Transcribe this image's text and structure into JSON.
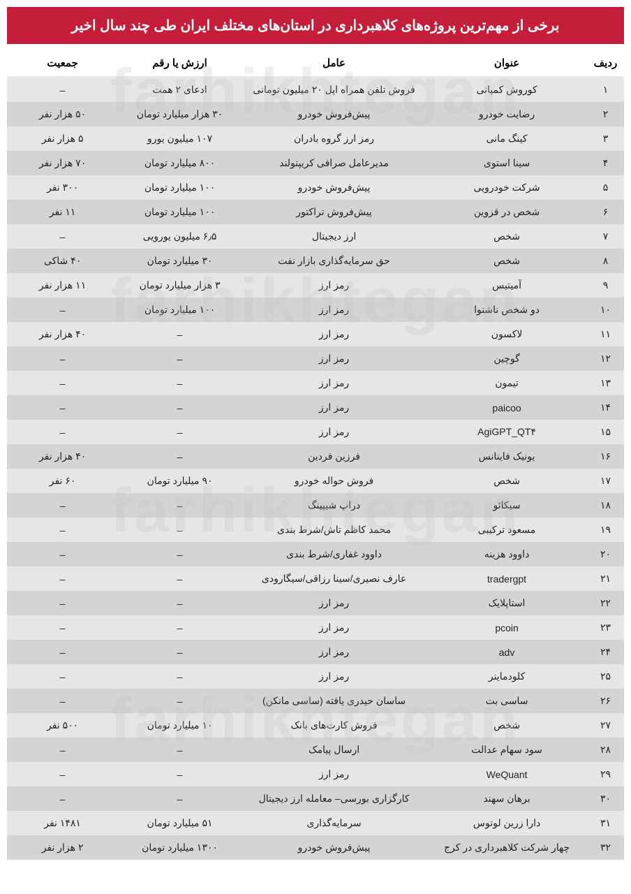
{
  "title": "برخی از مهم‌ترین پروژه‌های کلاهبرداری در استان‌های مختلف ایران طی چند سال اخیر",
  "watermark_text": "farhikhtegan",
  "columns": {
    "row": "ردیف",
    "title": "عنوان",
    "agent": "عامل",
    "value": "ارزش یا رقم",
    "population": "جمعیت"
  },
  "rows": [
    {
      "row": "۱",
      "title": "کوروش کمپانی",
      "agent": "فروش تلفن همراه اپل ۲۰ میلیون تومانی",
      "value": "ادعای ۲ همت",
      "population": "–"
    },
    {
      "row": "۲",
      "title": "رضایت خودرو",
      "agent": "پیش‌فروش خودرو",
      "value": "۳۰ هزار میلیارد تومان",
      "population": "۵۰ هزار نفر"
    },
    {
      "row": "۳",
      "title": "کینگ مانی",
      "agent": "رمز ارز گروه بادران",
      "value": "۱۰۷ میلیون یورو",
      "population": "۵ هزار نفر"
    },
    {
      "row": "۴",
      "title": "سینا استوی",
      "agent": "مدیرعامل صرافی کریپتولند",
      "value": "۸۰۰ میلیارد تومان",
      "population": "۷۰ هزار نفر"
    },
    {
      "row": "۵",
      "title": "شرکت خودرویی",
      "agent": "پیش‌فروش خودرو",
      "value": "۱۰۰ میلیارد تومان",
      "population": "۳۰۰ نفر"
    },
    {
      "row": "۶",
      "title": "شخص در قزوین",
      "agent": "پیش‌فروش تراکتور",
      "value": "۱۰۰ میلیارد تومان",
      "population": "۱۱ نفر"
    },
    {
      "row": "۷",
      "title": "شخص",
      "agent": "ارز دیجیتال",
      "value": "۶٫۵ میلیون یورویی",
      "population": "–"
    },
    {
      "row": "۸",
      "title": "شخص",
      "agent": "حق سرمایه‌گذاری بازار نفت",
      "value": "۳۰ میلیارد تومان",
      "population": "۴۰ شاکی"
    },
    {
      "row": "۹",
      "title": "آمیتیس",
      "agent": "رمز ارز",
      "value": "۳ هزار میلیارد تومان",
      "population": "۱۱ هزار نفر"
    },
    {
      "row": "۱۰",
      "title": "دو شخص ناشنوا",
      "agent": "رمز ارز",
      "value": "۱۰۰ میلیارد تومان",
      "population": "–"
    },
    {
      "row": "۱۱",
      "title": "لاکسون",
      "agent": "رمز ارز",
      "value": "–",
      "population": "۴۰ هزار نفر"
    },
    {
      "row": "۱۲",
      "title": "گوچین",
      "agent": "رمز ارز",
      "value": "–",
      "population": "–"
    },
    {
      "row": "۱۳",
      "title": "تیمون",
      "agent": "رمز ارز",
      "value": "–",
      "population": "–"
    },
    {
      "row": "۱۴",
      "title": "paicoo",
      "agent": "رمز ارز",
      "value": "–",
      "population": "–"
    },
    {
      "row": "۱۵",
      "title": "AgiGPT_QT۴",
      "agent": "رمز ارز",
      "value": "–",
      "population": "–"
    },
    {
      "row": "۱۶",
      "title": "یونیک فاینانس",
      "agent": "فرزین فردین",
      "value": "–",
      "population": "۴۰ هزار نفر"
    },
    {
      "row": "۱۷",
      "title": "شخص",
      "agent": "فروش حواله خودرو",
      "value": "۹۰ میلیارد تومان",
      "population": "۶۰ نفر"
    },
    {
      "row": "۱۸",
      "title": "سیکائو",
      "agent": "دراپ شیپینگ",
      "value": "–",
      "population": "–"
    },
    {
      "row": "۱۹",
      "title": "مسعود ترکیبی",
      "agent": "محمد کاظم تاش/شرط بندی",
      "value": "–",
      "population": "–"
    },
    {
      "row": "۲۰",
      "title": "داوود هزینه",
      "agent": "داوود غفاری/شرط بندی",
      "value": "–",
      "population": "–"
    },
    {
      "row": "۲۱",
      "title": "tradergpt",
      "agent": "عارف نصیری/سینا رزاقی/سیگارودی",
      "value": "–",
      "population": "–"
    },
    {
      "row": "۲۲",
      "title": "استاپلایک",
      "agent": "رمز ارز",
      "value": "–",
      "population": "–"
    },
    {
      "row": "۲۳",
      "title": "pcoin",
      "agent": "رمز ارز",
      "value": "–",
      "population": "–"
    },
    {
      "row": "۲۴",
      "title": "adv",
      "agent": "رمز ارز",
      "value": "–",
      "population": "–"
    },
    {
      "row": "۲۵",
      "title": "کلودماینر",
      "agent": "رمز ارز",
      "value": "–",
      "population": "–"
    },
    {
      "row": "۲۶",
      "title": "ساسی بت",
      "agent": "ساسان حیدری یافته (ساسی مانکن)",
      "value": "–",
      "population": "–"
    },
    {
      "row": "۲۷",
      "title": "شخص",
      "agent": "فروش کارت‌های بانک",
      "value": "۱۰ میلیارد تومان",
      "population": "۵۰۰ نفر"
    },
    {
      "row": "۲۸",
      "title": "سود سهام عدالت",
      "agent": "ارسال پیامک",
      "value": "–",
      "population": "–"
    },
    {
      "row": "۲۹",
      "title": "WeQuant",
      "agent": "رمز ارز",
      "value": "–",
      "population": "–"
    },
    {
      "row": "۳۰",
      "title": "برهان سهند",
      "agent": "کارگزاری بورسی– معامله ارز دیجیتال",
      "value": "–",
      "population": "–"
    },
    {
      "row": "۳۱",
      "title": "دارا زرین لوتوس",
      "agent": "سرمایه‌گذاری",
      "value": "۵۱ میلیارد تومان",
      "population": "۱۴۸۱ نفر"
    },
    {
      "row": "۳۲",
      "title": "چهار شرکت کلاهبرداری در کرج",
      "agent": "پیش‌فروش خودرو",
      "value": "۱۳۰۰ میلیارد تومان",
      "population": "۲ هزار نفر"
    }
  ],
  "colors": {
    "title_bg": "#c41e3a",
    "title_fg": "#ffffff",
    "row_odd": "#e8e6e4",
    "row_even": "#d6d4d2",
    "text": "#222222"
  }
}
